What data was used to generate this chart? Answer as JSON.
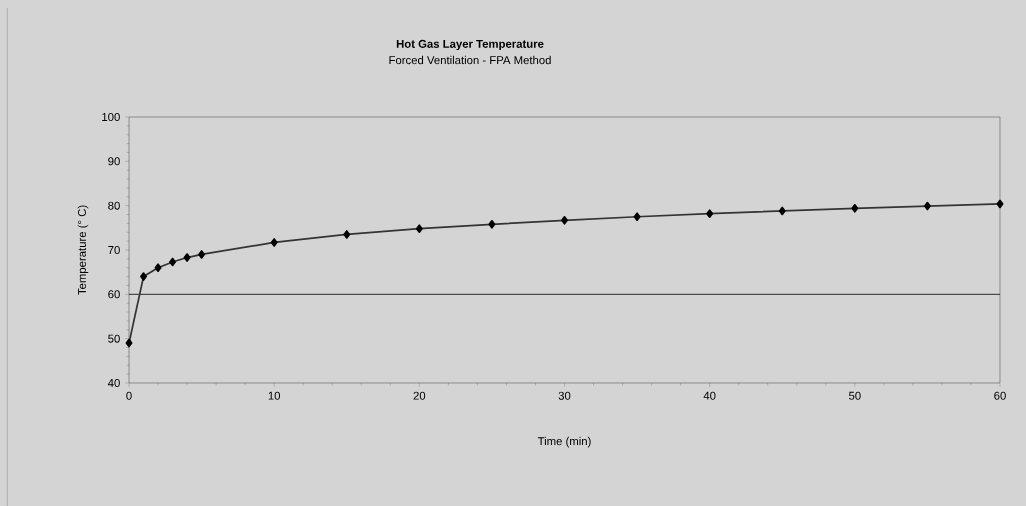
{
  "chart_data": {
    "type": "line",
    "title": "Hot Gas Layer Temperature",
    "subtitle": "Forced Ventilation - FPA Method",
    "xlabel": "Time (min)",
    "ylabel": "Temperature (° C)",
    "x": [
      0,
      1,
      2,
      3,
      4,
      5,
      10,
      15,
      20,
      25,
      30,
      35,
      40,
      45,
      50,
      55,
      60
    ],
    "series": [
      {
        "color": "#000000",
        "values": [
          49,
          64,
          66,
          67.3,
          68.3,
          69,
          71.7,
          73.5,
          74.8,
          75.8,
          76.7,
          77.5,
          78.2,
          78.8,
          79.4,
          79.9,
          80.4
        ]
      }
    ],
    "xlim": [
      0,
      60
    ],
    "xticks": [
      0,
      10,
      20,
      30,
      40,
      50,
      60
    ],
    "ylim": [
      40,
      100
    ],
    "yticks": [
      40,
      50,
      60,
      70,
      80,
      90,
      100
    ],
    "ref_lines": [
      {
        "axis": "y",
        "value": 60,
        "color": "#000000"
      }
    ],
    "marker": "diamond",
    "line_style": "solid",
    "grid": false
  }
}
